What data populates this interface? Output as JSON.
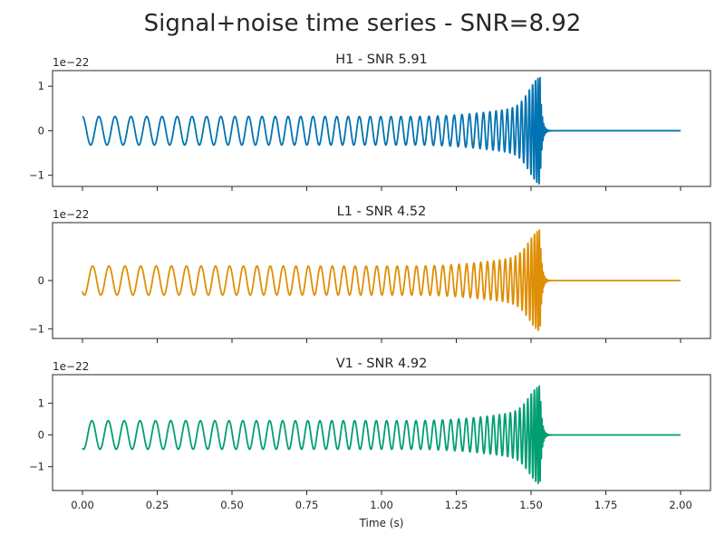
{
  "figure": {
    "suptitle": "Signal+noise time series - SNR=8.92",
    "xlabel": "Time (s)"
  },
  "chart_data": [
    {
      "type": "line",
      "title": "H1 - SNR 5.91",
      "color": "#0173b2",
      "offset_text": "1e−22",
      "xlim": [
        -0.1,
        2.1
      ],
      "ylim": [
        -1.25,
        1.35
      ],
      "x_ticks": [
        0.0,
        0.25,
        0.5,
        0.75,
        1.0,
        1.25,
        1.5,
        1.75,
        2.0
      ],
      "x_tick_labels": [],
      "y_ticks": [
        -1,
        0,
        1
      ],
      "y_tick_labels": [
        "−1",
        "0",
        "1"
      ],
      "signal": {
        "t_merge": 1.53,
        "t_end": 2.0,
        "inspiral_amp": 0.32,
        "peak_amp": 1.2,
        "phase": 1.6,
        "ringdown_tau": 0.006
      }
    },
    {
      "type": "line",
      "title": "L1 - SNR 4.52",
      "color": "#de8f05",
      "offset_text": "1e−22",
      "xlim": [
        -0.1,
        2.1
      ],
      "ylim": [
        -1.2,
        1.2
      ],
      "x_ticks": [
        0.0,
        0.25,
        0.5,
        0.75,
        1.0,
        1.25,
        1.5,
        1.75,
        2.0
      ],
      "x_tick_labels": [],
      "y_ticks": [
        -1,
        0
      ],
      "y_tick_labels": [
        "−1",
        "0"
      ],
      "signal": {
        "t_merge": 1.53,
        "t_end": 2.0,
        "inspiral_amp": 0.3,
        "peak_amp": 1.05,
        "phase": -2.3,
        "ringdown_tau": 0.006
      }
    },
    {
      "type": "line",
      "title": "V1 - SNR 4.92",
      "color": "#029e73",
      "offset_text": "1e−22",
      "xlim": [
        -0.1,
        2.1
      ],
      "ylim": [
        -1.75,
        1.9
      ],
      "x_ticks": [
        0.0,
        0.25,
        0.5,
        0.75,
        1.0,
        1.25,
        1.5,
        1.75,
        2.0
      ],
      "x_tick_labels": [
        "0.00",
        "0.25",
        "0.50",
        "0.75",
        "1.00",
        "1.25",
        "1.50",
        "1.75",
        "2.00"
      ],
      "y_ticks": [
        -1,
        0,
        1
      ],
      "y_tick_labels": [
        "−1",
        "0",
        "1"
      ],
      "signal": {
        "t_merge": 1.53,
        "t_end": 2.0,
        "inspiral_amp": 0.45,
        "peak_amp": 1.55,
        "phase": -2.0,
        "ringdown_tau": 0.006
      }
    }
  ]
}
